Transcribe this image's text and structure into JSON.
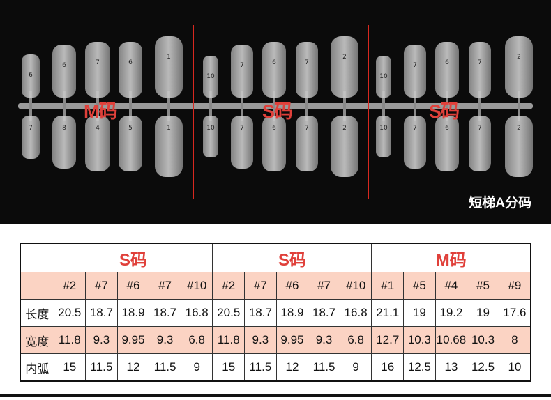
{
  "photo": {
    "labels": [
      "M码",
      "S码",
      "S码"
    ],
    "caption": "短梯A分码",
    "top_row_numbers": [
      [
        "6",
        "6",
        "7",
        "6",
        "1"
      ],
      [
        "10",
        "7",
        "6",
        "7",
        "2"
      ],
      [
        "10",
        "7",
        "6",
        "7",
        "2"
      ]
    ],
    "bottom_row_numbers": [
      [
        "7",
        "8",
        "4",
        "5",
        "1"
      ],
      [
        "10",
        "7",
        "6",
        "7",
        "2"
      ],
      [
        "10",
        "7",
        "6",
        "7",
        "2"
      ]
    ]
  },
  "table": {
    "groups": [
      "S码",
      "S码",
      "M码"
    ],
    "sizes": [
      "#2",
      "#7",
      "#6",
      "#7",
      "#10",
      "#2",
      "#7",
      "#6",
      "#7",
      "#10",
      "#1",
      "#5",
      "#4",
      "#5",
      "#9"
    ],
    "rows": [
      {
        "label": "长度",
        "values": [
          "20.5",
          "18.7",
          "18.9",
          "18.7",
          "16.8",
          "20.5",
          "18.7",
          "18.9",
          "18.7",
          "16.8",
          "21.1",
          "19",
          "19.2",
          "19",
          "17.6"
        ]
      },
      {
        "label": "宽度",
        "values": [
          "11.8",
          "9.3",
          "9.95",
          "9.3",
          "6.8",
          "11.8",
          "9.3",
          "9.95",
          "9.3",
          "6.8",
          "12.7",
          "10.3",
          "10.68",
          "10.3",
          "8"
        ]
      },
      {
        "label": "内弧",
        "values": [
          "15",
          "11.5",
          "12",
          "11.5",
          "9",
          "15",
          "11.5",
          "12",
          "11.5",
          "9",
          "16",
          "12.5",
          "13",
          "12.5",
          "10"
        ]
      }
    ]
  },
  "colors": {
    "accent": "#e0403a",
    "pink_row": "#fbd3c3",
    "photo_bg": "#0b0b0b"
  }
}
